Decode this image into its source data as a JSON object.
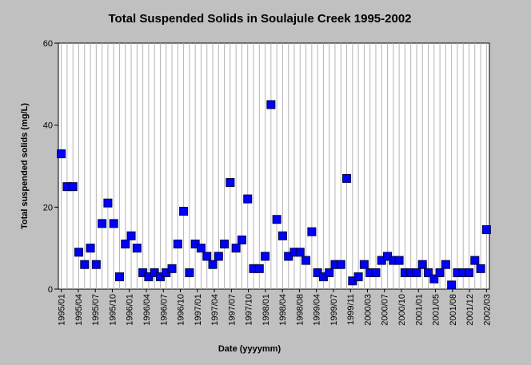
{
  "chart_data": {
    "type": "scatter",
    "title": "Total Suspended Solids in Soulajule Creek 1995-2002",
    "xlabel": "Date (yyyymm)",
    "ylabel": "Total suspended solids (mg/L)",
    "ylim": [
      0,
      60
    ],
    "yticks": [
      "0",
      "20",
      "40",
      "60"
    ],
    "xticks": [
      "1995/01",
      "1995/04",
      "1995/07",
      "1995/10",
      "1996/01",
      "1996/04",
      "1996/07",
      "1996/10",
      "1997/01",
      "1997/04",
      "1997/07",
      "1997/10",
      "1998/01",
      "1998/04",
      "1998/08",
      "1999/04",
      "1999/07",
      "1999/11",
      "2000/03",
      "2000/07",
      "2000/10",
      "2001/01",
      "2001/05",
      "2001/08",
      "2001/12",
      "2002/03"
    ],
    "grid": "vertical",
    "marker_color": "#0000ff",
    "values": [
      33,
      25,
      25,
      9,
      6,
      10,
      6,
      16,
      21,
      16,
      3,
      11,
      13,
      10,
      4,
      3,
      4,
      3,
      4,
      5,
      11,
      19,
      4,
      11,
      10,
      8,
      6,
      8,
      11,
      26,
      10,
      12,
      22,
      5,
      5,
      8,
      45,
      17,
      13,
      8,
      9,
      9,
      7,
      14,
      4,
      3,
      4,
      6,
      6,
      27,
      2,
      3,
      6,
      4,
      4,
      7,
      8,
      7,
      7,
      4,
      4,
      4,
      6,
      4,
      2.5,
      4,
      6,
      1,
      4,
      4,
      4,
      7,
      5,
      14.5
    ]
  }
}
